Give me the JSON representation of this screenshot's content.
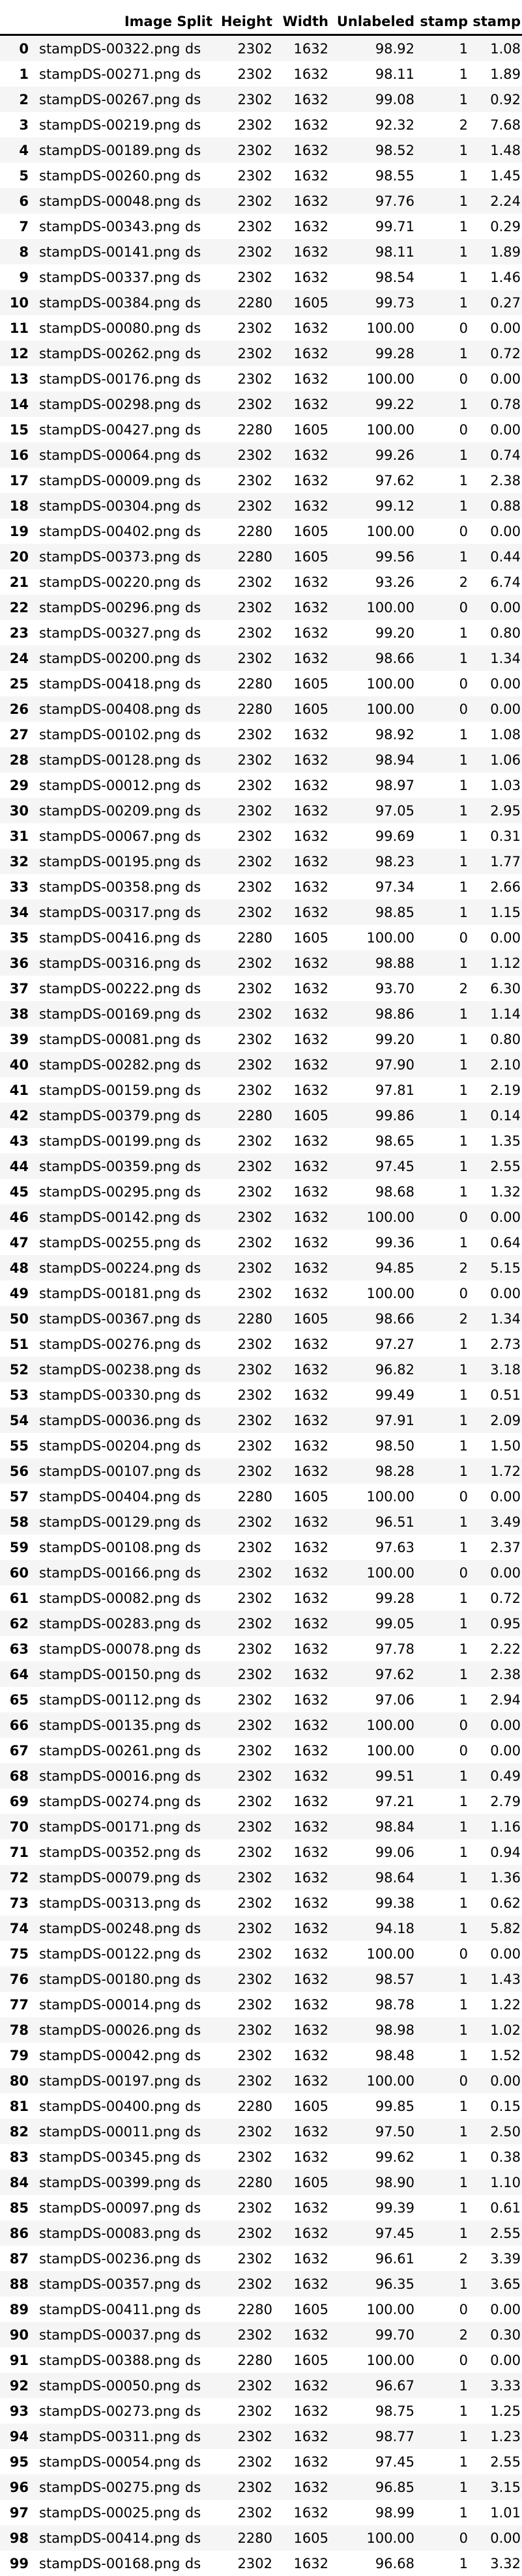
{
  "columns": [
    "",
    "Image",
    "Split",
    "Height",
    "Width",
    "Unlabeled",
    "stamp",
    "stamp"
  ],
  "rows": [
    [
      "0",
      "stampDS-00322.png",
      "ds",
      "2302",
      "1632",
      "98.92",
      "1",
      "1.08"
    ],
    [
      "1",
      "stampDS-00271.png",
      "ds",
      "2302",
      "1632",
      "98.11",
      "1",
      "1.89"
    ],
    [
      "2",
      "stampDS-00267.png",
      "ds",
      "2302",
      "1632",
      "99.08",
      "1",
      "0.92"
    ],
    [
      "3",
      "stampDS-00219.png",
      "ds",
      "2302",
      "1632",
      "92.32",
      "2",
      "7.68"
    ],
    [
      "4",
      "stampDS-00189.png",
      "ds",
      "2302",
      "1632",
      "98.52",
      "1",
      "1.48"
    ],
    [
      "5",
      "stampDS-00260.png",
      "ds",
      "2302",
      "1632",
      "98.55",
      "1",
      "1.45"
    ],
    [
      "6",
      "stampDS-00048.png",
      "ds",
      "2302",
      "1632",
      "97.76",
      "1",
      "2.24"
    ],
    [
      "7",
      "stampDS-00343.png",
      "ds",
      "2302",
      "1632",
      "99.71",
      "1",
      "0.29"
    ],
    [
      "8",
      "stampDS-00141.png",
      "ds",
      "2302",
      "1632",
      "98.11",
      "1",
      "1.89"
    ],
    [
      "9",
      "stampDS-00337.png",
      "ds",
      "2302",
      "1632",
      "98.54",
      "1",
      "1.46"
    ],
    [
      "10",
      "stampDS-00384.png",
      "ds",
      "2280",
      "1605",
      "99.73",
      "1",
      "0.27"
    ],
    [
      "11",
      "stampDS-00080.png",
      "ds",
      "2302",
      "1632",
      "100.00",
      "0",
      "0.00"
    ],
    [
      "12",
      "stampDS-00262.png",
      "ds",
      "2302",
      "1632",
      "99.28",
      "1",
      "0.72"
    ],
    [
      "13",
      "stampDS-00176.png",
      "ds",
      "2302",
      "1632",
      "100.00",
      "0",
      "0.00"
    ],
    [
      "14",
      "stampDS-00298.png",
      "ds",
      "2302",
      "1632",
      "99.22",
      "1",
      "0.78"
    ],
    [
      "15",
      "stampDS-00427.png",
      "ds",
      "2280",
      "1605",
      "100.00",
      "0",
      "0.00"
    ],
    [
      "16",
      "stampDS-00064.png",
      "ds",
      "2302",
      "1632",
      "99.26",
      "1",
      "0.74"
    ],
    [
      "17",
      "stampDS-00009.png",
      "ds",
      "2302",
      "1632",
      "97.62",
      "1",
      "2.38"
    ],
    [
      "18",
      "stampDS-00304.png",
      "ds",
      "2302",
      "1632",
      "99.12",
      "1",
      "0.88"
    ],
    [
      "19",
      "stampDS-00402.png",
      "ds",
      "2280",
      "1605",
      "100.00",
      "0",
      "0.00"
    ],
    [
      "20",
      "stampDS-00373.png",
      "ds",
      "2280",
      "1605",
      "99.56",
      "1",
      "0.44"
    ],
    [
      "21",
      "stampDS-00220.png",
      "ds",
      "2302",
      "1632",
      "93.26",
      "2",
      "6.74"
    ],
    [
      "22",
      "stampDS-00296.png",
      "ds",
      "2302",
      "1632",
      "100.00",
      "0",
      "0.00"
    ],
    [
      "23",
      "stampDS-00327.png",
      "ds",
      "2302",
      "1632",
      "99.20",
      "1",
      "0.80"
    ],
    [
      "24",
      "stampDS-00200.png",
      "ds",
      "2302",
      "1632",
      "98.66",
      "1",
      "1.34"
    ],
    [
      "25",
      "stampDS-00418.png",
      "ds",
      "2280",
      "1605",
      "100.00",
      "0",
      "0.00"
    ],
    [
      "26",
      "stampDS-00408.png",
      "ds",
      "2280",
      "1605",
      "100.00",
      "0",
      "0.00"
    ],
    [
      "27",
      "stampDS-00102.png",
      "ds",
      "2302",
      "1632",
      "98.92",
      "1",
      "1.08"
    ],
    [
      "28",
      "stampDS-00128.png",
      "ds",
      "2302",
      "1632",
      "98.94",
      "1",
      "1.06"
    ],
    [
      "29",
      "stampDS-00012.png",
      "ds",
      "2302",
      "1632",
      "98.97",
      "1",
      "1.03"
    ],
    [
      "30",
      "stampDS-00209.png",
      "ds",
      "2302",
      "1632",
      "97.05",
      "1",
      "2.95"
    ],
    [
      "31",
      "stampDS-00067.png",
      "ds",
      "2302",
      "1632",
      "99.69",
      "1",
      "0.31"
    ],
    [
      "32",
      "stampDS-00195.png",
      "ds",
      "2302",
      "1632",
      "98.23",
      "1",
      "1.77"
    ],
    [
      "33",
      "stampDS-00358.png",
      "ds",
      "2302",
      "1632",
      "97.34",
      "1",
      "2.66"
    ],
    [
      "34",
      "stampDS-00317.png",
      "ds",
      "2302",
      "1632",
      "98.85",
      "1",
      "1.15"
    ],
    [
      "35",
      "stampDS-00416.png",
      "ds",
      "2280",
      "1605",
      "100.00",
      "0",
      "0.00"
    ],
    [
      "36",
      "stampDS-00316.png",
      "ds",
      "2302",
      "1632",
      "98.88",
      "1",
      "1.12"
    ],
    [
      "37",
      "stampDS-00222.png",
      "ds",
      "2302",
      "1632",
      "93.70",
      "2",
      "6.30"
    ],
    [
      "38",
      "stampDS-00169.png",
      "ds",
      "2302",
      "1632",
      "98.86",
      "1",
      "1.14"
    ],
    [
      "39",
      "stampDS-00081.png",
      "ds",
      "2302",
      "1632",
      "99.20",
      "1",
      "0.80"
    ],
    [
      "40",
      "stampDS-00282.png",
      "ds",
      "2302",
      "1632",
      "97.90",
      "1",
      "2.10"
    ],
    [
      "41",
      "stampDS-00159.png",
      "ds",
      "2302",
      "1632",
      "97.81",
      "1",
      "2.19"
    ],
    [
      "42",
      "stampDS-00379.png",
      "ds",
      "2280",
      "1605",
      "99.86",
      "1",
      "0.14"
    ],
    [
      "43",
      "stampDS-00199.png",
      "ds",
      "2302",
      "1632",
      "98.65",
      "1",
      "1.35"
    ],
    [
      "44",
      "stampDS-00359.png",
      "ds",
      "2302",
      "1632",
      "97.45",
      "1",
      "2.55"
    ],
    [
      "45",
      "stampDS-00295.png",
      "ds",
      "2302",
      "1632",
      "98.68",
      "1",
      "1.32"
    ],
    [
      "46",
      "stampDS-00142.png",
      "ds",
      "2302",
      "1632",
      "100.00",
      "0",
      "0.00"
    ],
    [
      "47",
      "stampDS-00255.png",
      "ds",
      "2302",
      "1632",
      "99.36",
      "1",
      "0.64"
    ],
    [
      "48",
      "stampDS-00224.png",
      "ds",
      "2302",
      "1632",
      "94.85",
      "2",
      "5.15"
    ],
    [
      "49",
      "stampDS-00181.png",
      "ds",
      "2302",
      "1632",
      "100.00",
      "0",
      "0.00"
    ],
    [
      "50",
      "stampDS-00367.png",
      "ds",
      "2280",
      "1605",
      "98.66",
      "2",
      "1.34"
    ],
    [
      "51",
      "stampDS-00276.png",
      "ds",
      "2302",
      "1632",
      "97.27",
      "1",
      "2.73"
    ],
    [
      "52",
      "stampDS-00238.png",
      "ds",
      "2302",
      "1632",
      "96.82",
      "1",
      "3.18"
    ],
    [
      "53",
      "stampDS-00330.png",
      "ds",
      "2302",
      "1632",
      "99.49",
      "1",
      "0.51"
    ],
    [
      "54",
      "stampDS-00036.png",
      "ds",
      "2302",
      "1632",
      "97.91",
      "1",
      "2.09"
    ],
    [
      "55",
      "stampDS-00204.png",
      "ds",
      "2302",
      "1632",
      "98.50",
      "1",
      "1.50"
    ],
    [
      "56",
      "stampDS-00107.png",
      "ds",
      "2302",
      "1632",
      "98.28",
      "1",
      "1.72"
    ],
    [
      "57",
      "stampDS-00404.png",
      "ds",
      "2280",
      "1605",
      "100.00",
      "0",
      "0.00"
    ],
    [
      "58",
      "stampDS-00129.png",
      "ds",
      "2302",
      "1632",
      "96.51",
      "1",
      "3.49"
    ],
    [
      "59",
      "stampDS-00108.png",
      "ds",
      "2302",
      "1632",
      "97.63",
      "1",
      "2.37"
    ],
    [
      "60",
      "stampDS-00166.png",
      "ds",
      "2302",
      "1632",
      "100.00",
      "0",
      "0.00"
    ],
    [
      "61",
      "stampDS-00082.png",
      "ds",
      "2302",
      "1632",
      "99.28",
      "1",
      "0.72"
    ],
    [
      "62",
      "stampDS-00283.png",
      "ds",
      "2302",
      "1632",
      "99.05",
      "1",
      "0.95"
    ],
    [
      "63",
      "stampDS-00078.png",
      "ds",
      "2302",
      "1632",
      "97.78",
      "1",
      "2.22"
    ],
    [
      "64",
      "stampDS-00150.png",
      "ds",
      "2302",
      "1632",
      "97.62",
      "1",
      "2.38"
    ],
    [
      "65",
      "stampDS-00112.png",
      "ds",
      "2302",
      "1632",
      "97.06",
      "1",
      "2.94"
    ],
    [
      "66",
      "stampDS-00135.png",
      "ds",
      "2302",
      "1632",
      "100.00",
      "0",
      "0.00"
    ],
    [
      "67",
      "stampDS-00261.png",
      "ds",
      "2302",
      "1632",
      "100.00",
      "0",
      "0.00"
    ],
    [
      "68",
      "stampDS-00016.png",
      "ds",
      "2302",
      "1632",
      "99.51",
      "1",
      "0.49"
    ],
    [
      "69",
      "stampDS-00274.png",
      "ds",
      "2302",
      "1632",
      "97.21",
      "1",
      "2.79"
    ],
    [
      "70",
      "stampDS-00171.png",
      "ds",
      "2302",
      "1632",
      "98.84",
      "1",
      "1.16"
    ],
    [
      "71",
      "stampDS-00352.png",
      "ds",
      "2302",
      "1632",
      "99.06",
      "1",
      "0.94"
    ],
    [
      "72",
      "stampDS-00079.png",
      "ds",
      "2302",
      "1632",
      "98.64",
      "1",
      "1.36"
    ],
    [
      "73",
      "stampDS-00313.png",
      "ds",
      "2302",
      "1632",
      "99.38",
      "1",
      "0.62"
    ],
    [
      "74",
      "stampDS-00248.png",
      "ds",
      "2302",
      "1632",
      "94.18",
      "1",
      "5.82"
    ],
    [
      "75",
      "stampDS-00122.png",
      "ds",
      "2302",
      "1632",
      "100.00",
      "0",
      "0.00"
    ],
    [
      "76",
      "stampDS-00180.png",
      "ds",
      "2302",
      "1632",
      "98.57",
      "1",
      "1.43"
    ],
    [
      "77",
      "stampDS-00014.png",
      "ds",
      "2302",
      "1632",
      "98.78",
      "1",
      "1.22"
    ],
    [
      "78",
      "stampDS-00026.png",
      "ds",
      "2302",
      "1632",
      "98.98",
      "1",
      "1.02"
    ],
    [
      "79",
      "stampDS-00042.png",
      "ds",
      "2302",
      "1632",
      "98.48",
      "1",
      "1.52"
    ],
    [
      "80",
      "stampDS-00197.png",
      "ds",
      "2302",
      "1632",
      "100.00",
      "0",
      "0.00"
    ],
    [
      "81",
      "stampDS-00400.png",
      "ds",
      "2280",
      "1605",
      "99.85",
      "1",
      "0.15"
    ],
    [
      "82",
      "stampDS-00011.png",
      "ds",
      "2302",
      "1632",
      "97.50",
      "1",
      "2.50"
    ],
    [
      "83",
      "stampDS-00345.png",
      "ds",
      "2302",
      "1632",
      "99.62",
      "1",
      "0.38"
    ],
    [
      "84",
      "stampDS-00399.png",
      "ds",
      "2280",
      "1605",
      "98.90",
      "1",
      "1.10"
    ],
    [
      "85",
      "stampDS-00097.png",
      "ds",
      "2302",
      "1632",
      "99.39",
      "1",
      "0.61"
    ],
    [
      "86",
      "stampDS-00083.png",
      "ds",
      "2302",
      "1632",
      "97.45",
      "1",
      "2.55"
    ],
    [
      "87",
      "stampDS-00236.png",
      "ds",
      "2302",
      "1632",
      "96.61",
      "2",
      "3.39"
    ],
    [
      "88",
      "stampDS-00357.png",
      "ds",
      "2302",
      "1632",
      "96.35",
      "1",
      "3.65"
    ],
    [
      "89",
      "stampDS-00411.png",
      "ds",
      "2280",
      "1605",
      "100.00",
      "0",
      "0.00"
    ],
    [
      "90",
      "stampDS-00037.png",
      "ds",
      "2302",
      "1632",
      "99.70",
      "2",
      "0.30"
    ],
    [
      "91",
      "stampDS-00388.png",
      "ds",
      "2280",
      "1605",
      "100.00",
      "0",
      "0.00"
    ],
    [
      "92",
      "stampDS-00050.png",
      "ds",
      "2302",
      "1632",
      "96.67",
      "1",
      "3.33"
    ],
    [
      "93",
      "stampDS-00273.png",
      "ds",
      "2302",
      "1632",
      "98.75",
      "1",
      "1.25"
    ],
    [
      "94",
      "stampDS-00311.png",
      "ds",
      "2302",
      "1632",
      "98.77",
      "1",
      "1.23"
    ],
    [
      "95",
      "stampDS-00054.png",
      "ds",
      "2302",
      "1632",
      "97.45",
      "1",
      "2.55"
    ],
    [
      "96",
      "stampDS-00275.png",
      "ds",
      "2302",
      "1632",
      "96.85",
      "1",
      "3.15"
    ],
    [
      "97",
      "stampDS-00025.png",
      "ds",
      "2302",
      "1632",
      "98.99",
      "1",
      "1.01"
    ],
    [
      "98",
      "stampDS-00414.png",
      "ds",
      "2280",
      "1605",
      "100.00",
      "0",
      "0.00"
    ],
    [
      "99",
      "stampDS-00168.png",
      "ds",
      "2302",
      "1632",
      "96.68",
      "1",
      "3.32"
    ]
  ]
}
